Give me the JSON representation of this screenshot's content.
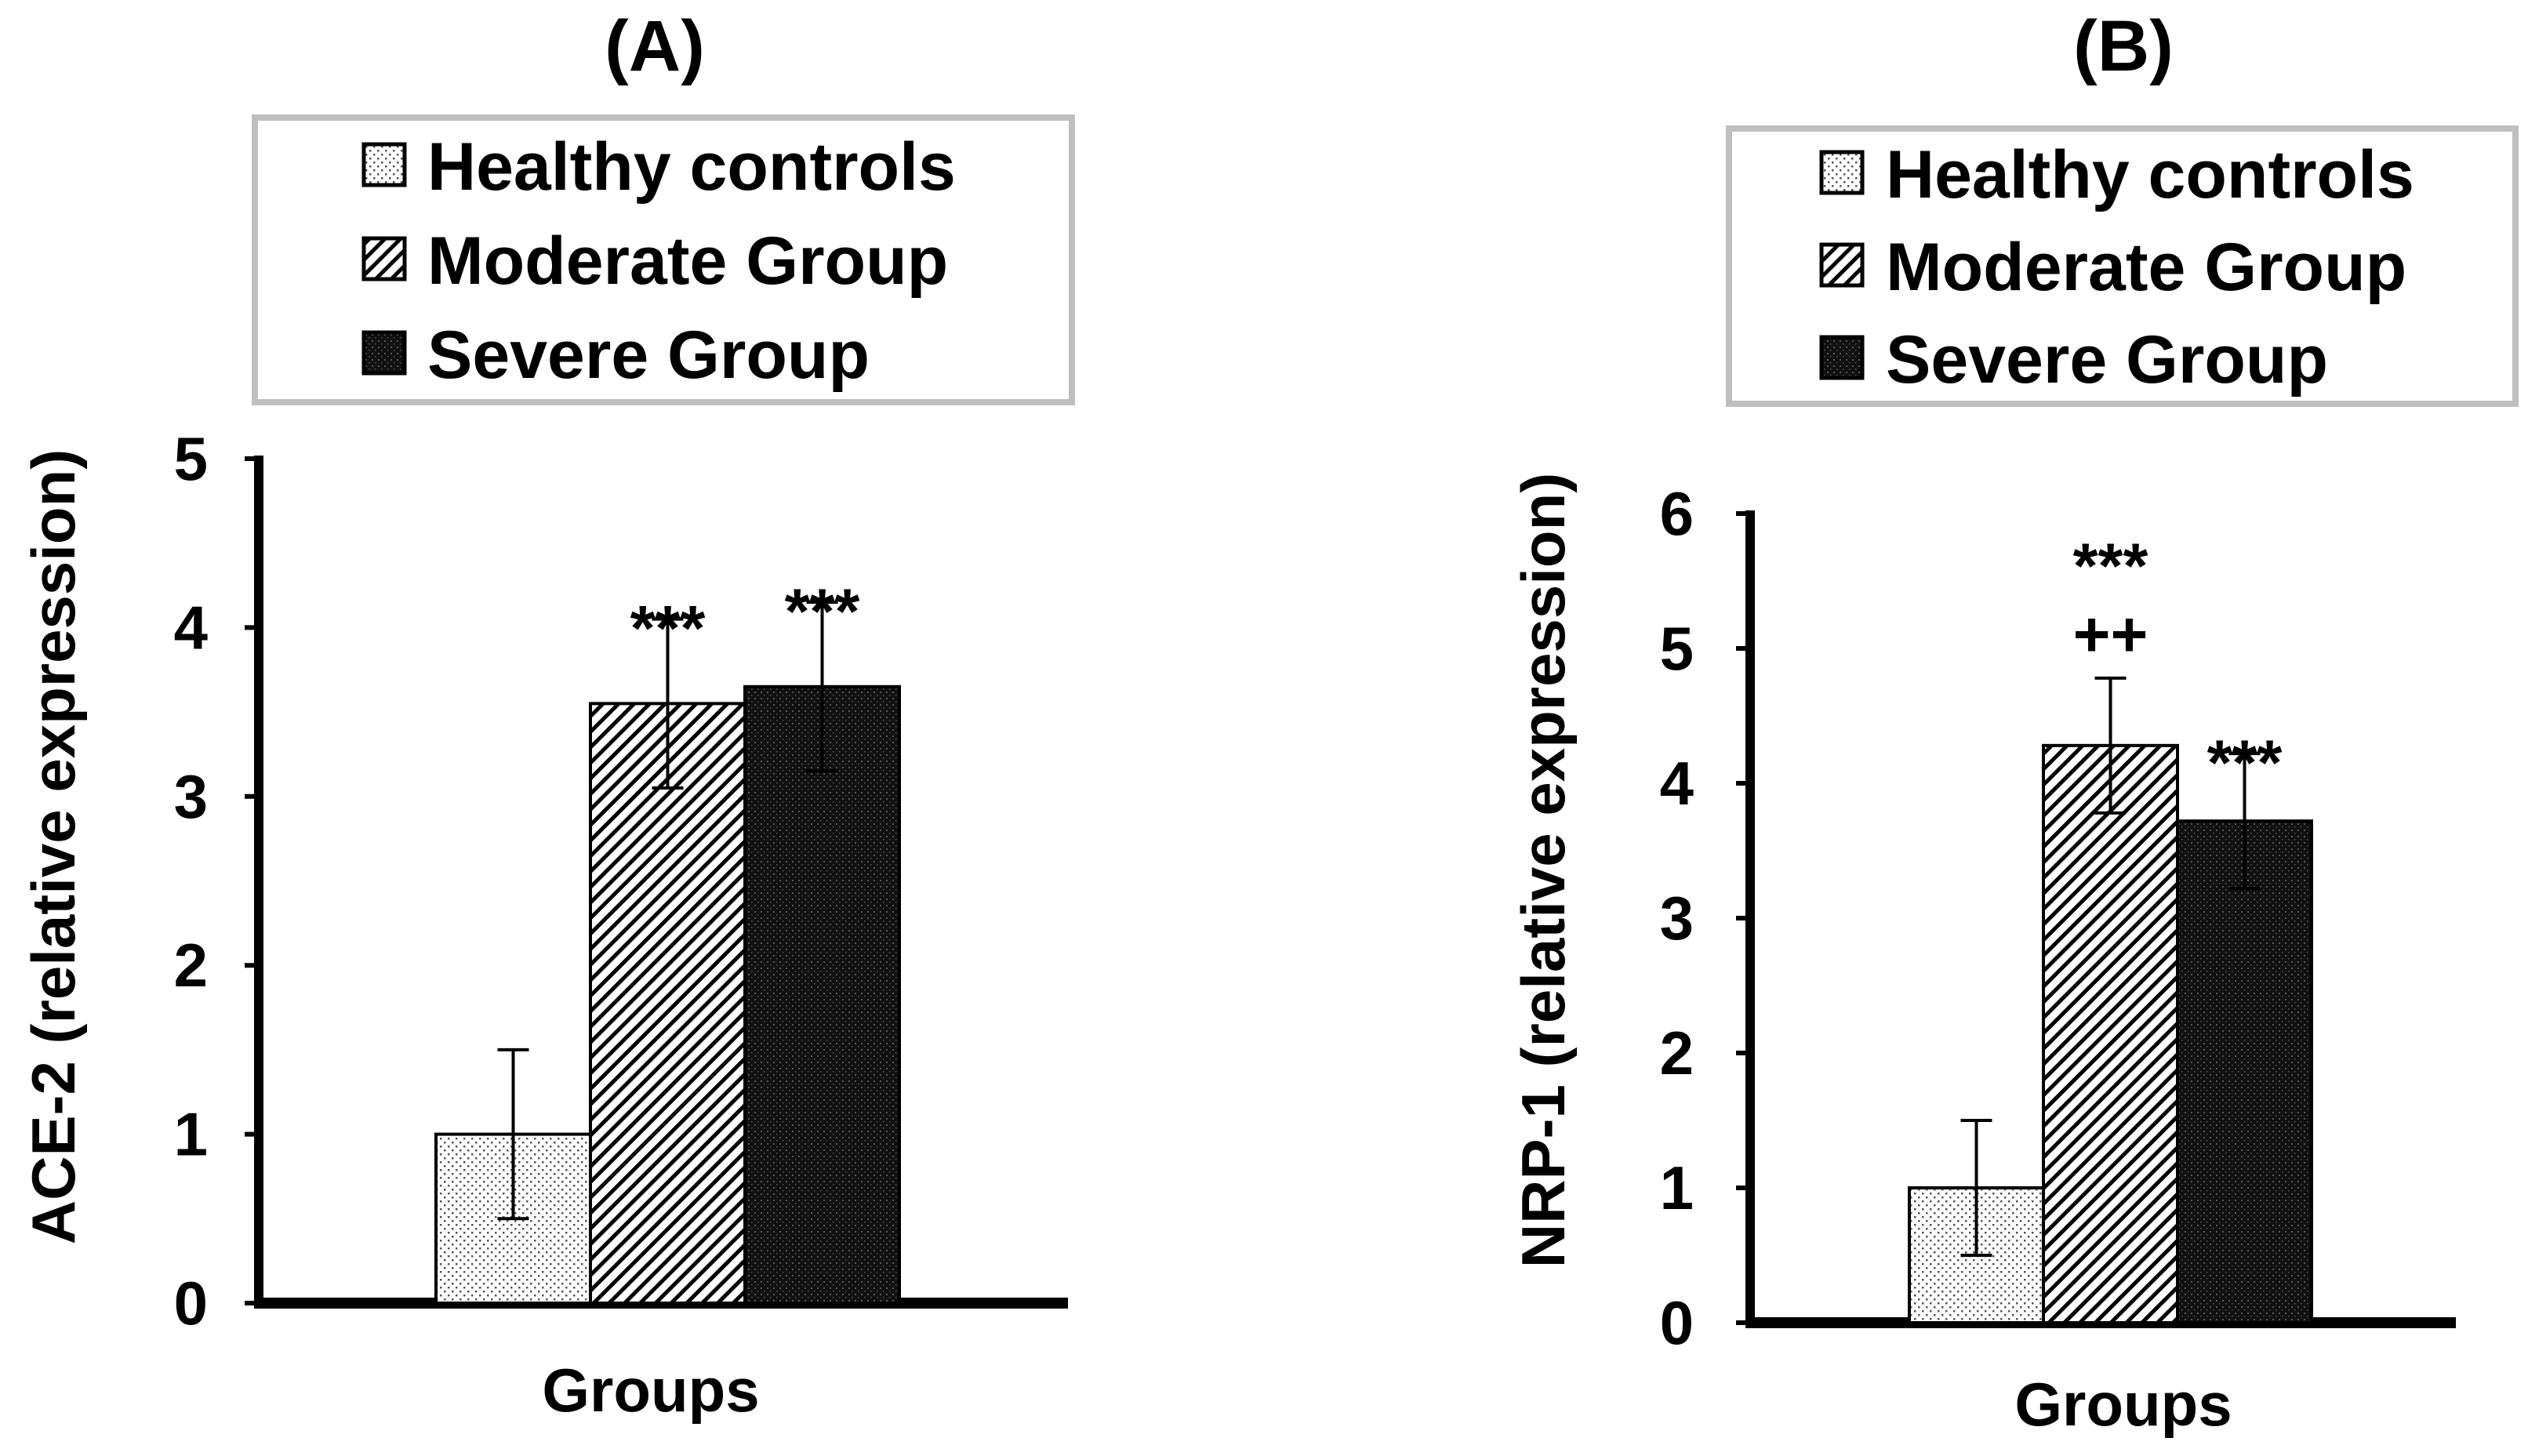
{
  "colors": {
    "axis": "#000000",
    "legend_border": "#bfbfbf",
    "healthy_dot": "#555555",
    "moderate_hatch": "#000000",
    "severe_fill": "#111111"
  },
  "legend_items": [
    {
      "label": "Healthy controls",
      "pattern": "dots-light"
    },
    {
      "label": "Moderate Group",
      "pattern": "diagonal-hatch"
    },
    {
      "label": "Severe Group",
      "pattern": "dense-dark"
    }
  ],
  "chart_data": [
    {
      "type": "bar",
      "title": "(A)",
      "xlabel": "Groups",
      "ylabel": "ACE-2 (relative expression)",
      "ylim": [
        0,
        5
      ],
      "yticks": [
        0,
        1,
        2,
        3,
        4,
        5
      ],
      "categories": [
        "Healthy controls",
        "Moderate Group",
        "Severe Group"
      ],
      "values": [
        1.0,
        3.55,
        3.65
      ],
      "errors": [
        0.5,
        0.5,
        0.5
      ],
      "annotations": [
        "",
        "***",
        "***"
      ],
      "annotations2": [
        "",
        "",
        ""
      ]
    },
    {
      "type": "bar",
      "title": "(B)",
      "xlabel": "Groups",
      "ylabel": "NRP-1 (relative expression)",
      "ylim": [
        0,
        6
      ],
      "yticks": [
        0,
        1,
        2,
        3,
        4,
        5,
        6
      ],
      "categories": [
        "Healthy controls",
        "Moderate Group",
        "Severe Group"
      ],
      "values": [
        1.0,
        4.28,
        3.72
      ],
      "errors": [
        0.5,
        0.5,
        0.5
      ],
      "annotations": [
        "",
        "***",
        "***"
      ],
      "annotations2": [
        "",
        "++",
        ""
      ]
    }
  ]
}
